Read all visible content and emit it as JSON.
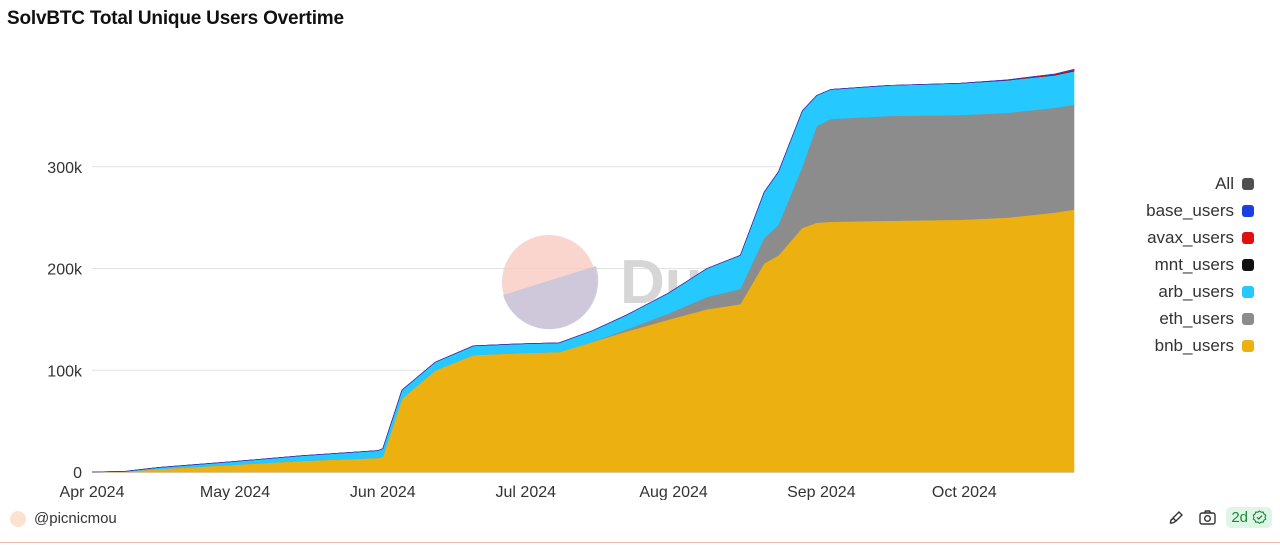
{
  "chart_data": {
    "type": "area",
    "stacked": true,
    "title": "SolvBTC Total Unique Users Overtime",
    "xlabel": "",
    "ylabel": "",
    "x_tick_labels": [
      "Apr 2024",
      "May 2024",
      "Jun 2024",
      "Jul 2024",
      "Aug 2024",
      "Sep 2024",
      "Oct 2024"
    ],
    "y_tick_labels": [
      "0",
      "100k",
      "200k",
      "300k"
    ],
    "ylim": [
      0,
      400000
    ],
    "grid": true,
    "legend_position": "right",
    "x": [
      "2024-04-01",
      "2024-04-08",
      "2024-04-15",
      "2024-04-30",
      "2024-05-15",
      "2024-05-31",
      "2024-06-01",
      "2024-06-05",
      "2024-06-12",
      "2024-06-20",
      "2024-06-30",
      "2024-07-08",
      "2024-07-15",
      "2024-07-22",
      "2024-07-31",
      "2024-08-08",
      "2024-08-15",
      "2024-08-20",
      "2024-08-23",
      "2024-08-28",
      "2024-08-31",
      "2024-09-03",
      "2024-09-15",
      "2024-09-30",
      "2024-10-10",
      "2024-10-20",
      "2024-10-24"
    ],
    "series": [
      {
        "name": "bnb_users",
        "color": "#ecb011",
        "values": [
          0,
          500,
          3000,
          7000,
          11000,
          14000,
          15000,
          72000,
          100000,
          115000,
          117000,
          118000,
          128000,
          138000,
          150000,
          160000,
          165000,
          205000,
          213000,
          240000,
          245000,
          246000,
          247000,
          248000,
          250000,
          255000,
          258000
        ]
      },
      {
        "name": "eth_users",
        "color": "#8c8c8c",
        "values": [
          0,
          0,
          0,
          0,
          0,
          0,
          0,
          0,
          0,
          0,
          0,
          0,
          0,
          2000,
          6000,
          12000,
          15000,
          25000,
          30000,
          60000,
          95000,
          101000,
          103000,
          103000,
          103000,
          103000,
          103000
        ]
      },
      {
        "name": "arb_users",
        "color": "#25c8ff",
        "values": [
          0,
          200,
          1500,
          3000,
          5000,
          7000,
          8000,
          8500,
          8000,
          9000,
          9000,
          9000,
          11000,
          14000,
          20000,
          28000,
          33000,
          45000,
          52000,
          55000,
          30000,
          29000,
          30000,
          31000,
          32000,
          32000,
          33000
        ]
      },
      {
        "name": "mnt_users",
        "color": "#111111",
        "values": [
          0,
          0,
          0,
          0,
          0,
          0,
          0,
          0,
          0,
          0,
          0,
          0,
          0,
          0,
          0,
          0,
          0,
          0,
          0,
          0,
          0,
          0,
          0,
          0,
          100,
          300,
          400
        ]
      },
      {
        "name": "avax_users",
        "color": "#e01010",
        "values": [
          0,
          0,
          0,
          0,
          0,
          0,
          0,
          0,
          0,
          0,
          0,
          0,
          0,
          0,
          0,
          0,
          0,
          0,
          0,
          0,
          0,
          0,
          0,
          0,
          300,
          800,
          1200
        ]
      },
      {
        "name": "base_users",
        "color": "#1a3fe0",
        "values": [
          0,
          0,
          0,
          0,
          0,
          0,
          0,
          0,
          0,
          0,
          0,
          0,
          0,
          0,
          0,
          0,
          0,
          0,
          0,
          0,
          0,
          0,
          0,
          0,
          100,
          200,
          300
        ]
      }
    ],
    "legend": [
      {
        "label": "All",
        "color": "#505050"
      },
      {
        "label": "base_users",
        "color": "#1a3fe0"
      },
      {
        "label": "avax_users",
        "color": "#e01010"
      },
      {
        "label": "mnt_users",
        "color": "#111111"
      },
      {
        "label": "arb_users",
        "color": "#25c8ff"
      },
      {
        "label": "eth_users",
        "color": "#8c8c8c"
      },
      {
        "label": "bnb_users",
        "color": "#ecb011"
      }
    ]
  },
  "watermark": "Dune",
  "footer": {
    "author": "@picnicmou",
    "age": "2d",
    "icons": [
      "paint-brush-icon",
      "camera-icon",
      "check-circle-icon"
    ]
  }
}
